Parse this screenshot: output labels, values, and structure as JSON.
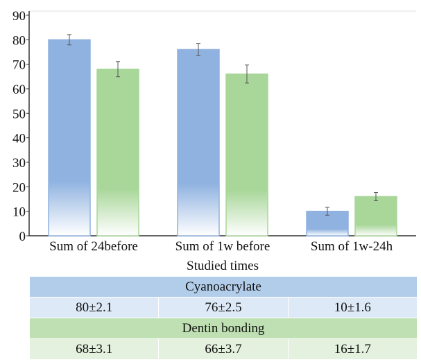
{
  "chart_data": {
    "type": "bar",
    "categories": [
      "Sum of 24before",
      "Sum of 1w before",
      "Sum of 1w-24h"
    ],
    "series": [
      {
        "name": "Cyanoacrylate",
        "values": [
          80,
          76,
          10
        ],
        "errors": [
          2.1,
          2.5,
          1.6
        ],
        "color": "#8fb2e0"
      },
      {
        "name": "Dentin bonding",
        "values": [
          68,
          66,
          16
        ],
        "errors": [
          3.1,
          3.7,
          1.7
        ],
        "color": "#a9d79a"
      }
    ],
    "xlabel": "Studied times",
    "ylabel": "",
    "ylim": [
      0,
      90
    ],
    "yticks": [
      0,
      10,
      20,
      30,
      40,
      50,
      60,
      70,
      80,
      90
    ],
    "grid": false,
    "legend": "table-below"
  },
  "table": {
    "groups": [
      {
        "label": "Cyanoacrylate",
        "cells": [
          "80±2.1",
          "76±2.5",
          "10±1.6"
        ]
      },
      {
        "label": "Dentin bonding",
        "cells": [
          "68±3.1",
          "66±3.7",
          "16±1.7"
        ]
      }
    ]
  }
}
